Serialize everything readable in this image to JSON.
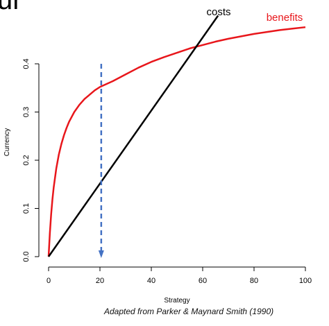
{
  "header": {
    "cropped_title_fragment": "ur"
  },
  "caption": "Adapted from Parker & Maynard Smith (1990)",
  "chart_data": {
    "type": "line",
    "title": "",
    "xlabel": "Strategy",
    "ylabel": "Currency",
    "xlim": [
      0,
      100
    ],
    "ylim": [
      0,
      0.48
    ],
    "xticks": [
      "0",
      "20",
      "40",
      "60",
      "80",
      "100"
    ],
    "yticks": [
      "0.0",
      "0.1",
      "0.2",
      "0.3",
      "0.4"
    ],
    "grid": false,
    "series": [
      {
        "name": "benefits",
        "color": "#e8161b",
        "x": [
          0,
          0.5,
          1,
          1.5,
          2,
          3,
          4,
          5,
          6,
          7,
          8,
          10,
          12,
          14,
          16,
          18,
          20,
          25,
          30,
          35,
          40,
          45,
          50,
          55,
          60,
          65,
          70,
          75,
          80,
          85,
          90,
          95,
          100
        ],
        "y": [
          0.0,
          0.049,
          0.088,
          0.119,
          0.144,
          0.183,
          0.212,
          0.234,
          0.252,
          0.267,
          0.28,
          0.3,
          0.315,
          0.327,
          0.336,
          0.345,
          0.352,
          0.364,
          0.378,
          0.392,
          0.404,
          0.414,
          0.423,
          0.432,
          0.439,
          0.446,
          0.452,
          0.457,
          0.462,
          0.466,
          0.47,
          0.473,
          0.476
        ]
      },
      {
        "name": "costs",
        "color": "#000000",
        "x": [
          0,
          66
        ],
        "y": [
          0,
          0.5
        ]
      }
    ],
    "annotations": [
      {
        "type": "dashed-arrow",
        "x": 20.5,
        "y_from": 0.4,
        "y_to": 0.0,
        "color": "#4472c4"
      }
    ]
  }
}
